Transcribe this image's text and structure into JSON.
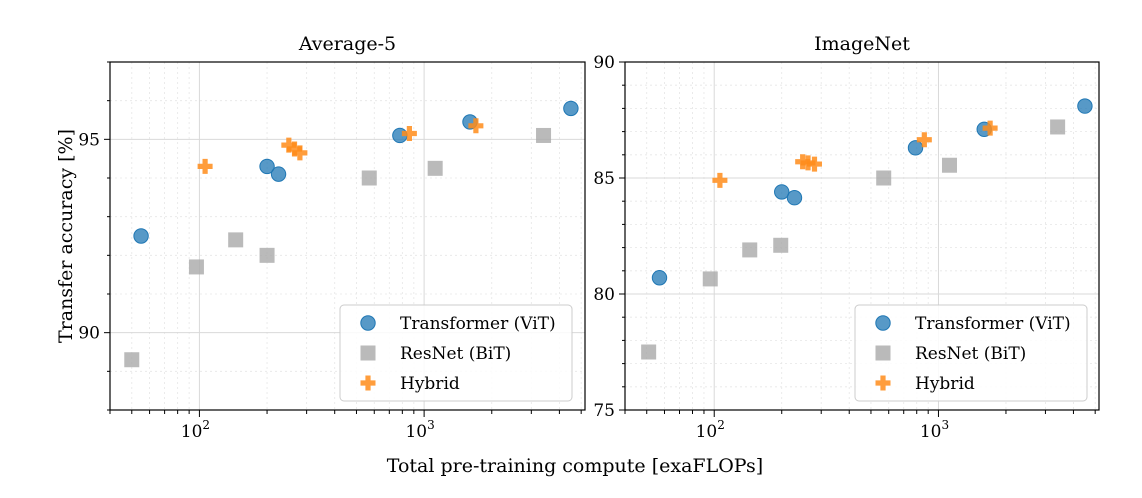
{
  "chart_data": [
    {
      "type": "scatter",
      "title": "Average-5",
      "xlabel": "Total pre-training compute [exaFLOPs]",
      "ylabel": "Transfer accuracy [%]",
      "xscale": "log",
      "xlim": [
        40,
        5200
      ],
      "ylim": [
        88,
        97
      ],
      "yticks": [
        90,
        95
      ],
      "xticks": [
        {
          "value": 100,
          "base": "10",
          "exp": "2"
        },
        {
          "value": 1000,
          "base": "10",
          "exp": "3"
        }
      ],
      "grid": true,
      "legend_position": "lower-right",
      "series": [
        {
          "name": "Transformer (ViT)",
          "marker": "circle",
          "color": "#1f77b4",
          "points": [
            [
              55,
              92.5
            ],
            [
              200,
              94.3
            ],
            [
              225,
              94.1
            ],
            [
              780,
              95.1
            ],
            [
              1600,
              95.45
            ],
            [
              4500,
              95.8
            ]
          ]
        },
        {
          "name": "ResNet (BiT)",
          "marker": "square",
          "color": "#a9a9a9",
          "points": [
            [
              50,
              89.3
            ],
            [
              97,
              91.7
            ],
            [
              145,
              92.4
            ],
            [
              200,
              92.0
            ],
            [
              570,
              94.0
            ],
            [
              1120,
              94.25
            ],
            [
              3400,
              95.1
            ]
          ]
        },
        {
          "name": "Hybrid",
          "marker": "plus",
          "color": "#ff8c1a",
          "points": [
            [
              106,
              94.3
            ],
            [
              250,
              94.85
            ],
            [
              265,
              94.75
            ],
            [
              280,
              94.65
            ],
            [
              860,
              95.15
            ],
            [
              1700,
              95.35
            ]
          ]
        }
      ]
    },
    {
      "type": "scatter",
      "title": "ImageNet",
      "xlabel": "Total pre-training compute [exaFLOPs]",
      "ylabel": "",
      "xscale": "log",
      "xlim": [
        40,
        5200
      ],
      "ylim": [
        75,
        90
      ],
      "yticks": [
        75,
        80,
        85,
        90
      ],
      "xticks": [
        {
          "value": 100,
          "base": "10",
          "exp": "2"
        },
        {
          "value": 1000,
          "base": "10",
          "exp": "3"
        }
      ],
      "grid": true,
      "legend_position": "lower-right",
      "series": [
        {
          "name": "Transformer (ViT)",
          "marker": "circle",
          "color": "#1f77b4",
          "points": [
            [
              57,
              80.7
            ],
            [
              200,
              84.4
            ],
            [
              228,
              84.15
            ],
            [
              790,
              86.3
            ],
            [
              1600,
              87.1
            ],
            [
              4500,
              88.1
            ]
          ]
        },
        {
          "name": "ResNet (BiT)",
          "marker": "square",
          "color": "#a9a9a9",
          "points": [
            [
              51,
              77.5
            ],
            [
              96,
              80.65
            ],
            [
              144,
              81.9
            ],
            [
              198,
              82.1
            ],
            [
              570,
              85.0
            ],
            [
              1120,
              85.55
            ],
            [
              3400,
              87.2
            ]
          ]
        },
        {
          "name": "Hybrid",
          "marker": "plus",
          "color": "#ff8c1a",
          "points": [
            [
              106,
              84.9
            ],
            [
              248,
              85.7
            ],
            [
              262,
              85.65
            ],
            [
              280,
              85.6
            ],
            [
              865,
              86.65
            ],
            [
              1700,
              87.15
            ]
          ]
        }
      ]
    }
  ],
  "shared_xlabel": "Total pre-training compute [exaFLOPs]"
}
